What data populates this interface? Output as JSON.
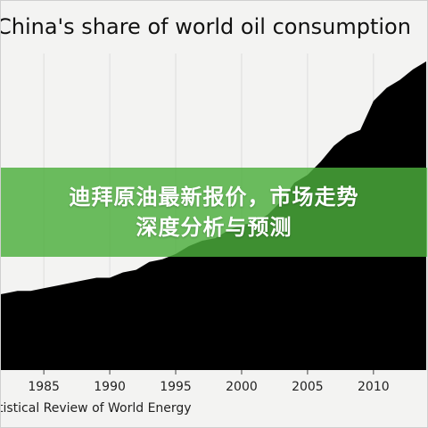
{
  "chart_data": {
    "type": "area",
    "title": "China's share of world oil consumption",
    "xlabel": "",
    "ylabel": "",
    "source": "tistical Review of World Energy",
    "x_ticks": [
      1985,
      1990,
      1995,
      2000,
      2005,
      2010
    ],
    "xlim": [
      1981,
      2014
    ],
    "ylim": [
      0,
      12
    ],
    "grid": true,
    "series": [
      {
        "x": [
          1981,
          1982,
          1983,
          1984,
          1985,
          1986,
          1987,
          1988,
          1989,
          1990,
          1991,
          1992,
          1993,
          1994,
          1995,
          1996,
          1997,
          1998,
          1999,
          2000,
          2001,
          2002,
          2003,
          2004,
          2005,
          2006,
          2007,
          2008,
          2009,
          2010,
          2011,
          2012,
          2013,
          2014
        ],
        "values": [
          2.8,
          2.9,
          3.0,
          3.0,
          3.1,
          3.2,
          3.3,
          3.4,
          3.5,
          3.5,
          3.7,
          3.8,
          4.1,
          4.2,
          4.4,
          4.7,
          4.9,
          5.0,
          5.3,
          5.5,
          5.6,
          5.9,
          6.4,
          7.1,
          7.4,
          7.9,
          8.5,
          8.9,
          9.1,
          10.2,
          10.7,
          11.0,
          11.4,
          11.7
        ]
      }
    ],
    "fill_color": "#000000",
    "background_color": "#f3f3f2",
    "grid_color": "#dddddd"
  },
  "banner": {
    "line1": "迪拜原油最新报价，市场走势",
    "line2": "深度分析与预测",
    "color": "#4caf3c"
  }
}
